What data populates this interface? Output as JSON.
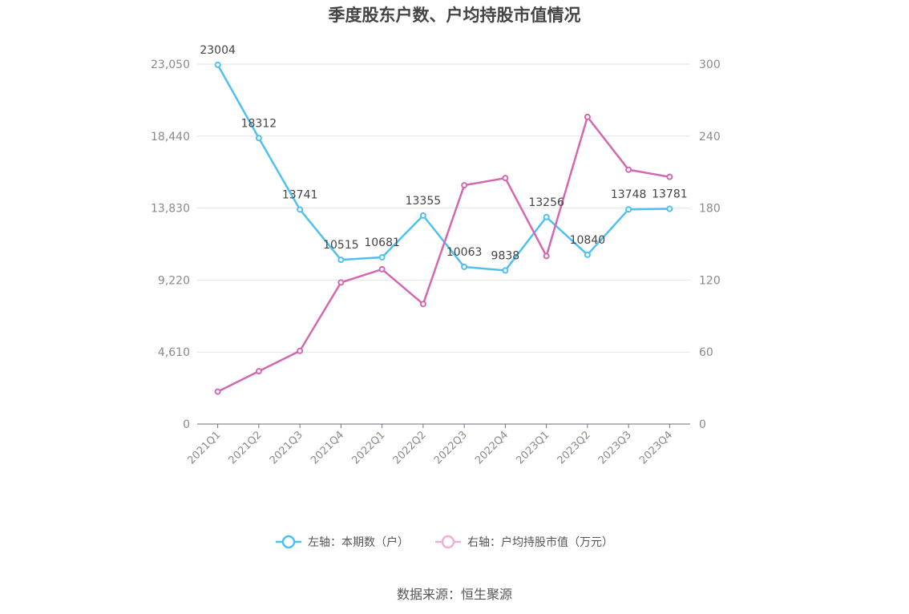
{
  "chart_data": {
    "type": "line",
    "title": "季度股东户数、户均持股市值情况",
    "categories": [
      "2021Q1",
      "2021Q2",
      "2021Q3",
      "2021Q4",
      "2022Q1",
      "2022Q2",
      "2022Q3",
      "2022Q4",
      "2023Q1",
      "2023Q2",
      "2023Q3",
      "2023Q4"
    ],
    "left_axis": {
      "ticks": [
        "0",
        "4,610",
        "9,220",
        "13,830",
        "18,440",
        "23,050"
      ],
      "range": [
        0,
        23050
      ]
    },
    "right_axis": {
      "ticks": [
        "0",
        "60",
        "120",
        "180",
        "240",
        "300"
      ],
      "range": [
        0,
        300
      ]
    },
    "series": [
      {
        "name": "左轴：本期数（户）",
        "axis": "left",
        "color": "#4fc1f0",
        "values": [
          23004,
          18312,
          13741,
          10515,
          10681,
          13355,
          10063,
          9838,
          13256,
          10840,
          13748,
          13781
        ],
        "labels": [
          "23004",
          "18312",
          "13741",
          "10515",
          "10681",
          "13355",
          "10063",
          "9838",
          "13256",
          "10840",
          "13748",
          "13781"
        ]
      },
      {
        "name": "右轴：户均持股市值（万元）",
        "axis": "right",
        "color": "#d468b0",
        "values": [
          27,
          44,
          61,
          118,
          129,
          100,
          199,
          205,
          140,
          256,
          212,
          206
        ]
      }
    ],
    "grid": true,
    "legend_position": "bottom"
  },
  "source": "数据来源：恒生聚源"
}
